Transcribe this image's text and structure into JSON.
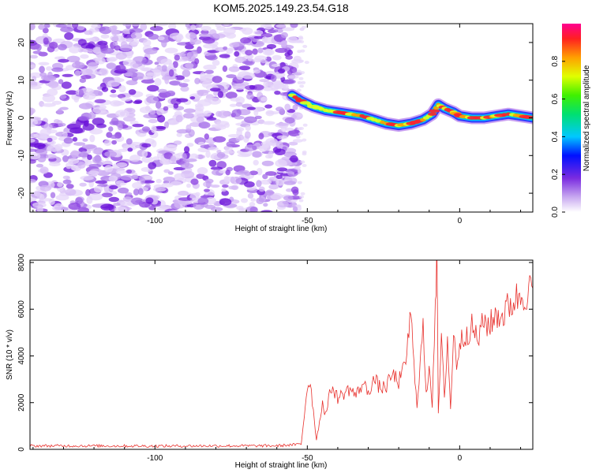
{
  "title": "KOM5.2025.149.23.54.G18",
  "chart_data": [
    {
      "type": "heatmap",
      "xlabel": "Height of straight line (km)",
      "ylabel": "Frequency (Hz)",
      "xlim": [
        -141,
        24
      ],
      "ylim": [
        -25,
        25
      ],
      "xticks": [
        -100,
        -50,
        0
      ],
      "yticks": [
        -20,
        -10,
        0,
        10,
        20
      ],
      "noise_region_x": [
        -141,
        -53
      ],
      "ridge": {
        "x": [
          -55,
          -52,
          -48,
          -44,
          -40,
          -36,
          -32,
          -28,
          -24,
          -20,
          -16,
          -12,
          -9,
          -7,
          -5,
          -2,
          0,
          4,
          8,
          12,
          16,
          20,
          24
        ],
        "y": [
          6,
          4.5,
          3,
          2,
          1.5,
          1,
          0.5,
          -0.5,
          -1.5,
          -2,
          -1.5,
          -0.5,
          1,
          3.5,
          2.5,
          1.5,
          0.5,
          0,
          0,
          0.5,
          1,
          0.5,
          0
        ]
      },
      "colorbar": {
        "label": "Normalized spectral amplitude",
        "ticks": [
          "0.0",
          "0.2",
          "0.4",
          "0.6",
          "0.8"
        ],
        "range": [
          0,
          1
        ]
      }
    },
    {
      "type": "line",
      "xlabel": "Height of straight line (km)",
      "ylabel": "SNR (10 * v/v)",
      "xlim": [
        -141,
        24
      ],
      "ylim": [
        0,
        8100
      ],
      "xticks": [
        -100,
        -50,
        0
      ],
      "yticks": [
        0,
        2000,
        4000,
        6000,
        8000
      ],
      "color": "#e8302c",
      "series": [
        {
          "x": [
            -141,
            -120,
            -100,
            -80,
            -60,
            -52,
            -50,
            -49,
            -47,
            -45,
            -44,
            -42,
            -40,
            -38,
            -36,
            -34,
            -32,
            -30,
            -28,
            -26,
            -24,
            -22,
            -20,
            -18,
            -16,
            -15,
            -14,
            -12,
            -11,
            -10,
            -9,
            -8,
            -7.5,
            -7,
            -6,
            -5,
            -4,
            -3,
            -2,
            -1,
            0,
            2,
            4,
            6,
            8,
            10,
            12,
            14,
            16,
            18,
            20,
            22,
            24
          ],
          "y": [
            150,
            150,
            140,
            150,
            150,
            220,
            2700,
            2900,
            400,
            2000,
            1500,
            2700,
            2200,
            2400,
            2600,
            2300,
            2800,
            2500,
            3000,
            2600,
            2700,
            3200,
            2900,
            3500,
            5800,
            3500,
            2000,
            5200,
            2200,
            3800,
            1900,
            6500,
            8100,
            1600,
            4600,
            2200,
            4800,
            1700,
            4900,
            3700,
            4500,
            5000,
            5200,
            4700,
            5500,
            5300,
            5800,
            5700,
            6100,
            6400,
            6600,
            6700,
            6900
          ]
        }
      ]
    }
  ]
}
